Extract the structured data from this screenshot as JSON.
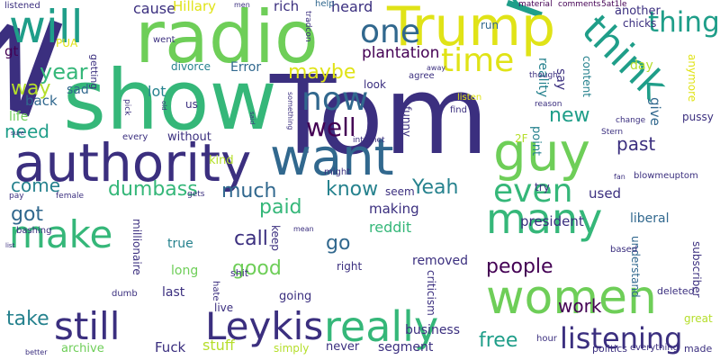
{
  "palette": {
    "background": "#ffffff",
    "dark_purple": "#440154",
    "indigo": "#3b2f7f",
    "navy": "#2c3e75",
    "blue": "#31688e",
    "teal_blue": "#26828e",
    "teal": "#1f9e89",
    "green": "#35b779",
    "light_green": "#6ece58",
    "lime": "#b5de2b",
    "yellow": "#e0e317"
  },
  "words": [
    {
      "text": "MGTOW",
      "color": "#3b2f7f",
      "rotated": false
    },
    {
      "text": "Tom",
      "color": "#3b2f7f",
      "rotated": false
    },
    {
      "text": "authority",
      "color": "#3b2f7f",
      "rotated": false
    },
    {
      "text": "show",
      "color": "#35b779",
      "rotated": false
    },
    {
      "text": "money",
      "color": "#1f9e89",
      "rotated": true
    },
    {
      "text": "radio",
      "color": "#6ece58",
      "rotated": false
    },
    {
      "text": "Trump",
      "color": "#e0e317",
      "rotated": false
    },
    {
      "text": "will",
      "color": "#1f9e89",
      "rotated": false
    },
    {
      "text": "guy",
      "color": "#6ece58",
      "rotated": false
    },
    {
      "text": "think",
      "color": "#1f9e89",
      "rotated": true
    },
    {
      "text": "want",
      "color": "#31688e",
      "rotated": false
    },
    {
      "text": "women",
      "color": "#6ece58",
      "rotated": false
    },
    {
      "text": "many",
      "color": "#35b779",
      "rotated": false
    },
    {
      "text": "really",
      "color": "#35b779",
      "rotated": false
    },
    {
      "text": "still",
      "color": "#3b2f7f",
      "rotated": false
    },
    {
      "text": "Leykis",
      "color": "#3b2f7f",
      "rotated": false
    },
    {
      "text": "make",
      "color": "#35b779",
      "rotated": true
    },
    {
      "text": "thing",
      "color": "#1f9e89",
      "rotated": true
    },
    {
      "text": "one",
      "color": "#31688e",
      "rotated": false
    },
    {
      "text": "time",
      "color": "#e0e317",
      "rotated": false
    },
    {
      "text": "now",
      "color": "#31688e",
      "rotated": false
    },
    {
      "text": "even",
      "color": "#35b779",
      "rotated": false
    },
    {
      "text": "listening",
      "color": "#3b2f7f",
      "rotated": false
    },
    {
      "text": "well",
      "color": "#440154",
      "rotated": false
    },
    {
      "text": "year",
      "color": "#35b779",
      "rotated": false
    },
    {
      "text": "way",
      "color": "#b5de2b",
      "rotated": false
    },
    {
      "text": "need",
      "color": "#1f9e89",
      "rotated": false
    },
    {
      "text": "people",
      "color": "#440154",
      "rotated": false
    },
    {
      "text": "much",
      "color": "#31688e",
      "rotated": false
    },
    {
      "text": "dumbass",
      "color": "#35b779",
      "rotated": false
    },
    {
      "text": "Yeah",
      "color": "#26828e",
      "rotated": false
    },
    {
      "text": "maybe",
      "color": "#e0e317",
      "rotated": false
    },
    {
      "text": "know",
      "color": "#26828e",
      "rotated": false
    },
    {
      "text": "new",
      "color": "#1f9e89",
      "rotated": false
    },
    {
      "text": "free",
      "color": "#1f9e89",
      "rotated": false
    },
    {
      "text": "paid",
      "color": "#35b779",
      "rotated": true
    },
    {
      "text": "good",
      "color": "#6ece58",
      "rotated": true
    },
    {
      "text": "work",
      "color": "#440154",
      "rotated": false
    },
    {
      "text": "got",
      "color": "#31688e",
      "rotated": false
    },
    {
      "text": "take",
      "color": "#26828e",
      "rotated": true
    },
    {
      "text": "go",
      "color": "#31688e",
      "rotated": false
    },
    {
      "text": "call",
      "color": "#3b2f7f",
      "rotated": false
    },
    {
      "text": "come",
      "color": "#26828e",
      "rotated": false
    },
    {
      "text": "plantation",
      "color": "#440154",
      "rotated": false
    },
    {
      "text": "lot",
      "color": "#26828e",
      "rotated": false
    },
    {
      "text": "sad",
      "color": "#31688e",
      "rotated": false
    },
    {
      "text": "listened",
      "color": "#3b2f7f",
      "rotated": false
    },
    {
      "text": "cause",
      "color": "#3b2f7f",
      "rotated": false
    },
    {
      "text": "Hillary",
      "color": "#e0e317",
      "rotated": false
    },
    {
      "text": "heard",
      "color": "#3b2f7f",
      "rotated": false
    },
    {
      "text": "rich",
      "color": "#3b2f7f",
      "rotated": false
    },
    {
      "text": "help",
      "color": "#31688e",
      "rotated": false
    },
    {
      "text": "run",
      "color": "#31688e",
      "rotated": false
    },
    {
      "text": "material",
      "color": "#440154",
      "rotated": false
    },
    {
      "text": "comments",
      "color": "#440154",
      "rotated": false
    },
    {
      "text": "5at1le",
      "color": "#440154",
      "rotated": false
    },
    {
      "text": "another",
      "color": "#3b2f7f",
      "rotated": false
    },
    {
      "text": "chicks",
      "color": "#3b2f7f",
      "rotated": false
    },
    {
      "text": "PUA",
      "color": "#e0e317",
      "rotated": false
    },
    {
      "text": "gt",
      "color": "#440154",
      "rotated": false
    },
    {
      "text": "Error",
      "color": "#31688e",
      "rotated": false
    },
    {
      "text": "divorce",
      "color": "#26828e",
      "rotated": false
    },
    {
      "text": "went",
      "color": "#3b2f7f",
      "rotated": false
    },
    {
      "text": "back",
      "color": "#31688e",
      "rotated": false
    },
    {
      "text": "life",
      "color": "#6ece58",
      "rotated": false
    },
    {
      "text": "look",
      "color": "#3b2f7f",
      "rotated": false
    },
    {
      "text": "agree",
      "color": "#3b2f7f",
      "rotated": false
    },
    {
      "text": "listen",
      "color": "#e0e317",
      "rotated": false
    },
    {
      "text": "say",
      "color": "#3b2f7f",
      "rotated": true
    },
    {
      "text": "content",
      "color": "#26828e",
      "rotated": true
    },
    {
      "text": "reality",
      "color": "#26828e",
      "rotated": true
    },
    {
      "text": "day",
      "color": "#b5de2b",
      "rotated": false
    },
    {
      "text": "past",
      "color": "#3b2f7f",
      "rotated": false
    },
    {
      "text": "give",
      "color": "#31688e",
      "rotated": true
    },
    {
      "text": "used",
      "color": "#3b2f7f",
      "rotated": false
    },
    {
      "text": "president",
      "color": "#3b2f7f",
      "rotated": false
    },
    {
      "text": "liberal",
      "color": "#31688e",
      "rotated": false
    },
    {
      "text": "without",
      "color": "#3b2f7f",
      "rotated": false
    },
    {
      "text": "kind",
      "color": "#b5de2b",
      "rotated": false
    },
    {
      "text": "seem",
      "color": "#3b2f7f",
      "rotated": false
    },
    {
      "text": "making",
      "color": "#3b2f7f",
      "rotated": false
    },
    {
      "text": "reddit",
      "color": "#35b779",
      "rotated": false
    },
    {
      "text": "keep",
      "color": "#3b2f7f",
      "rotated": true
    },
    {
      "text": "right",
      "color": "#3b2f7f",
      "rotated": false
    },
    {
      "text": "removed",
      "color": "#3b2f7f",
      "rotated": false
    },
    {
      "text": "true",
      "color": "#26828e",
      "rotated": false
    },
    {
      "text": "long",
      "color": "#6ece58",
      "rotated": false
    },
    {
      "text": "last",
      "color": "#3b2f7f",
      "rotated": false
    },
    {
      "text": "live",
      "color": "#3b2f7f",
      "rotated": false
    },
    {
      "text": "going",
      "color": "#3b2f7f",
      "rotated": false
    },
    {
      "text": "stuff",
      "color": "#b5de2b",
      "rotated": false
    },
    {
      "text": "Fuck",
      "color": "#3b2f7f",
      "rotated": false
    },
    {
      "text": "archive",
      "color": "#6ece58",
      "rotated": false
    },
    {
      "text": "never",
      "color": "#3b2f7f",
      "rotated": false
    },
    {
      "text": "segment",
      "color": "#3b2f7f",
      "rotated": false
    },
    {
      "text": "simply",
      "color": "#b5de2b",
      "rotated": false
    },
    {
      "text": "business",
      "color": "#3b2f7f",
      "rotated": false
    },
    {
      "text": "politics",
      "color": "#3b2f7f",
      "rotated": false
    },
    {
      "text": "everything",
      "color": "#3b2f7f",
      "rotated": false
    },
    {
      "text": "made",
      "color": "#3b2f7f",
      "rotated": false
    },
    {
      "text": "deleted",
      "color": "#3b2f7f",
      "rotated": false
    },
    {
      "text": "great",
      "color": "#b5de2b",
      "rotated": false
    },
    {
      "text": "understand",
      "color": "#31688e",
      "rotated": true
    },
    {
      "text": "subscriber",
      "color": "#3b2f7f",
      "rotated": true
    },
    {
      "text": "millionaire",
      "color": "#3b2f7f",
      "rotated": true
    },
    {
      "text": "anymore",
      "color": "#e0e317",
      "rotated": true
    },
    {
      "text": "pussy",
      "color": "#3b2f7f",
      "rotated": false
    },
    {
      "text": "change",
      "color": "#3b2f7f",
      "rotated": false
    },
    {
      "text": "Stern",
      "color": "#3b2f7f",
      "rotated": false
    },
    {
      "text": "2F",
      "color": "#b5de2b",
      "rotated": false
    },
    {
      "text": "find",
      "color": "#3b2f7f",
      "rotated": false
    },
    {
      "text": "point",
      "color": "#26828e",
      "rotated": true
    },
    {
      "text": "internet",
      "color": "#3b2f7f",
      "rotated": false
    },
    {
      "text": "funny",
      "color": "#3b2f7f",
      "rotated": true
    },
    {
      "text": "fan",
      "color": "#3b2f7f",
      "rotated": false
    },
    {
      "text": "blowmeuptom",
      "color": "#3b2f7f",
      "rotated": false
    },
    {
      "text": "try",
      "color": "#3b2f7f",
      "rotated": false
    },
    {
      "text": "might",
      "color": "#3b2f7f",
      "rotated": false
    },
    {
      "text": "pay",
      "color": "#3b2f7f",
      "rotated": false
    },
    {
      "text": "female",
      "color": "#3b2f7f",
      "rotated": false
    },
    {
      "text": "gets",
      "color": "#3b2f7f",
      "rotated": false
    },
    {
      "text": "shit",
      "color": "#3b2f7f",
      "rotated": false
    },
    {
      "text": "dumb",
      "color": "#3b2f7f",
      "rotated": false
    },
    {
      "text": "bashing",
      "color": "#3b2f7f",
      "rotated": false
    },
    {
      "text": "list",
      "color": "#3b2f7f",
      "rotated": false
    },
    {
      "text": "hate",
      "color": "#3b2f7f",
      "rotated": true
    },
    {
      "text": "better",
      "color": "#3b2f7f",
      "rotated": false
    },
    {
      "text": "hour",
      "color": "#3b2f7f",
      "rotated": false
    },
    {
      "text": "criticism",
      "color": "#3b2f7f",
      "rotated": true
    },
    {
      "text": "mean",
      "color": "#3b2f7f",
      "rotated": false
    },
    {
      "text": "based",
      "color": "#3b2f7f",
      "rotated": false
    },
    {
      "text": "every",
      "color": "#3b2f7f",
      "rotated": false
    },
    {
      "text": "pick",
      "color": "#3b2f7f",
      "rotated": true
    },
    {
      "text": "us",
      "color": "#3b2f7f",
      "rotated": false
    },
    {
      "text": "old",
      "color": "#3b2f7f",
      "rotated": true
    },
    {
      "text": "sure",
      "color": "#3b2f7f",
      "rotated": false
    },
    {
      "text": "getting",
      "color": "#3b2f7f",
      "rotated": true
    },
    {
      "text": "said",
      "color": "#3b2f7f",
      "rotated": true
    },
    {
      "text": "something",
      "color": "#3b2f7f",
      "rotated": true
    },
    {
      "text": "away",
      "color": "#3b2f7f",
      "rotated": false
    },
    {
      "text": "though",
      "color": "#3b2f7f",
      "rotated": false
    },
    {
      "text": "reason",
      "color": "#3b2f7f",
      "rotated": false
    },
    {
      "text": "tradcon",
      "color": "#3b2f7f",
      "rotated": true
    },
    {
      "text": "men",
      "color": "#3b2f7f",
      "rotated": false
    }
  ]
}
